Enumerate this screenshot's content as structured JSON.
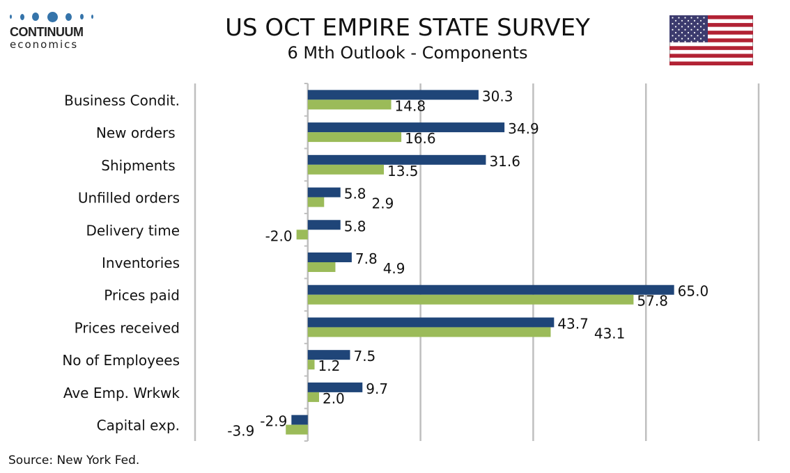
{
  "logo": {
    "brand": "CONTINUUM",
    "sub": "economics"
  },
  "source": "Source: New York Fed.",
  "colors": {
    "series1": "#1f4578",
    "series2": "#9bbb59",
    "grid": "#bfbfbf",
    "flag_red": "#b22234",
    "flag_blue": "#3c3b6e"
  },
  "chart_data": {
    "type": "bar",
    "orientation": "horizontal",
    "title": "US OCT EMPIRE STATE SURVEY",
    "subtitle": "6 Mth Outlook - Components",
    "categories": [
      "Business Condit.",
      "New orders ",
      "Shipments ",
      "Unfilled orders",
      "Delivery time",
      "Inventories",
      "Prices paid",
      "Prices received",
      "No of Employees",
      "Ave Emp. Wrkwk",
      "Capital exp."
    ],
    "series": [
      {
        "values": [
          30.3,
          34.9,
          31.6,
          5.8,
          5.8,
          7.8,
          65.0,
          43.7,
          7.5,
          9.7,
          -2.9
        ],
        "color": "#1f4578"
      },
      {
        "values": [
          14.8,
          16.6,
          13.5,
          2.9,
          -2.0,
          4.9,
          57.8,
          43.1,
          1.2,
          2.0,
          -3.9
        ],
        "color": "#9bbb59"
      }
    ],
    "xlim": [
      -20,
      80
    ],
    "grid": true,
    "tick_labels_shown": false,
    "data_labels": true
  }
}
